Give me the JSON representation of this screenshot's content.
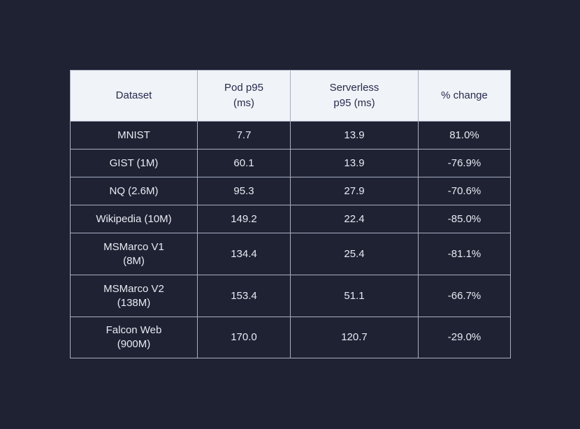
{
  "page": {
    "background_color": "#1e2233",
    "border_color": "#a9aec2",
    "header_bg_color": "#f0f3f7",
    "header_text_color": "#262b4d",
    "body_text_color": "#e8ebf3"
  },
  "table": {
    "headers": [
      "Dataset",
      "Pod p95\n(ms)",
      "Serverless\np95 (ms)",
      "% change"
    ],
    "rows": [
      {
        "cells": [
          "MNIST",
          "7.7",
          "13.9",
          "81.0%"
        ]
      },
      {
        "cells": [
          "GIST (1M)",
          "60.1",
          "13.9",
          "-76.9%"
        ]
      },
      {
        "cells": [
          "NQ (2.6M)",
          "95.3",
          "27.9",
          "-70.6%"
        ]
      },
      {
        "cells": [
          "Wikipedia (10M)",
          "149.2",
          "22.4",
          "-85.0%"
        ]
      },
      {
        "cells": [
          "MSMarco V1\n(8M)",
          "134.4",
          "25.4",
          "-81.1%"
        ]
      },
      {
        "cells": [
          "MSMarco V2\n(138M)",
          "153.4",
          "51.1",
          "-66.7%"
        ]
      },
      {
        "cells": [
          "Falcon Web\n(900M)",
          "170.0",
          "120.7",
          "-29.0%"
        ]
      }
    ]
  },
  "chart_data": {
    "type": "table",
    "columns": [
      "Dataset",
      "Pod p95 (ms)",
      "Serverless p95 (ms)",
      "% change"
    ],
    "rows": [
      [
        "MNIST",
        7.7,
        13.9,
        "81.0%"
      ],
      [
        "GIST (1M)",
        60.1,
        13.9,
        "-76.9%"
      ],
      [
        "NQ (2.6M)",
        95.3,
        27.9,
        "-70.6%"
      ],
      [
        "Wikipedia (10M)",
        149.2,
        22.4,
        "-85.0%"
      ],
      [
        "MSMarco V1 (8M)",
        134.4,
        25.4,
        "-81.1%"
      ],
      [
        "MSMarco V2 (138M)",
        153.4,
        51.1,
        "-66.7%"
      ],
      [
        "Falcon Web (900M)",
        170.0,
        120.7,
        "-29.0%"
      ]
    ]
  }
}
